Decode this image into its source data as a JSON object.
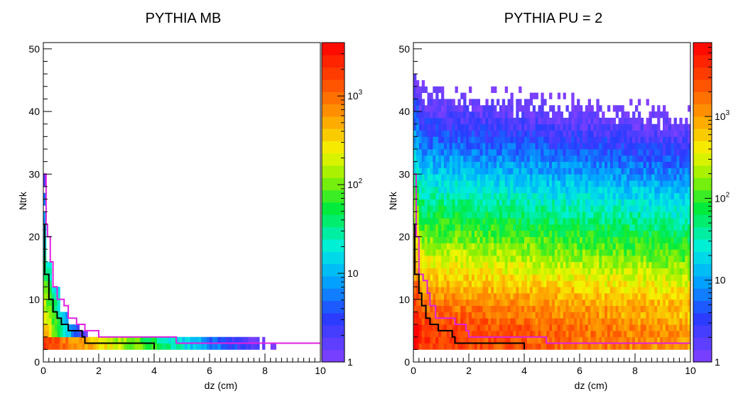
{
  "chart_data": [
    {
      "type": "heatmap",
      "title": "PYTHIA MB",
      "xlabel": "dz (cm)",
      "ylabel": "Ntrk",
      "xlim": [
        0,
        10
      ],
      "ylim": [
        0,
        51
      ],
      "x_ticks": [
        "0",
        "2",
        "4",
        "6",
        "8",
        "10"
      ],
      "y_ticks": [
        "0",
        "10",
        "20",
        "30",
        "40",
        "50"
      ],
      "z_scale": "log",
      "z_range": [
        1,
        4000
      ],
      "z_ticks": [
        {
          "base": "1",
          "exp": ""
        },
        {
          "base": "10",
          "exp": ""
        },
        {
          "base": "10",
          "exp": "2"
        },
        {
          "base": "10",
          "exp": "3"
        }
      ],
      "fill_pattern": "sparse, concentrated at small dz",
      "curves": [
        {
          "color": "#e020e0",
          "points": [
            [
              0,
              30
            ],
            [
              0.1,
              22
            ],
            [
              0.15,
              20
            ],
            [
              0.25,
              16
            ],
            [
              0.35,
              12
            ],
            [
              0.5,
              10
            ],
            [
              0.75,
              9
            ],
            [
              0.9,
              7
            ],
            [
              1.2,
              6
            ],
            [
              1.5,
              5
            ],
            [
              2.0,
              4
            ],
            [
              4.7,
              4
            ],
            [
              4.8,
              3
            ],
            [
              10,
              3
            ]
          ]
        },
        {
          "color": "#000000",
          "points": [
            [
              0,
              22
            ],
            [
              0.05,
              14
            ],
            [
              0.2,
              10
            ],
            [
              0.35,
              8
            ],
            [
              0.5,
              7
            ],
            [
              0.65,
              6
            ],
            [
              0.9,
              5
            ],
            [
              1.4,
              4
            ],
            [
              1.5,
              3
            ],
            [
              4,
              3
            ],
            [
              4,
              2
            ]
          ]
        }
      ]
    },
    {
      "type": "heatmap",
      "title": "PYTHIA PU = 2",
      "xlabel": "dz (cm)",
      "ylabel": "Ntrk",
      "xlim": [
        0,
        10
      ],
      "ylim": [
        0,
        51
      ],
      "x_ticks": [
        "0",
        "2",
        "4",
        "6",
        "8",
        "10"
      ],
      "y_ticks": [
        "0",
        "10",
        "20",
        "30",
        "40",
        "50"
      ],
      "z_scale": "log",
      "z_range": [
        1,
        8000
      ],
      "z_ticks": [
        {
          "base": "1",
          "exp": ""
        },
        {
          "base": "10",
          "exp": ""
        },
        {
          "base": "10",
          "exp": "2"
        },
        {
          "base": "10",
          "exp": "3"
        }
      ],
      "fill_pattern": "dense, counts fall with Ntrk, sparse above 42",
      "curves": [
        {
          "color": "#e020e0",
          "points": [
            [
              0,
              30
            ],
            [
              0.1,
              20
            ],
            [
              0.2,
              14
            ],
            [
              0.35,
              13
            ],
            [
              0.5,
              11
            ],
            [
              0.6,
              9
            ],
            [
              0.8,
              7
            ],
            [
              1.5,
              6
            ],
            [
              1.9,
              5
            ],
            [
              2.0,
              4
            ],
            [
              4.7,
              4
            ],
            [
              4.8,
              3
            ],
            [
              10,
              3
            ]
          ]
        },
        {
          "color": "#000000",
          "points": [
            [
              0,
              22
            ],
            [
              0.05,
              14
            ],
            [
              0.2,
              11
            ],
            [
              0.3,
              9
            ],
            [
              0.45,
              7
            ],
            [
              0.6,
              6
            ],
            [
              0.9,
              5
            ],
            [
              1.4,
              4
            ],
            [
              1.5,
              3
            ],
            [
              4,
              3
            ],
            [
              4,
              2
            ]
          ]
        }
      ]
    }
  ]
}
